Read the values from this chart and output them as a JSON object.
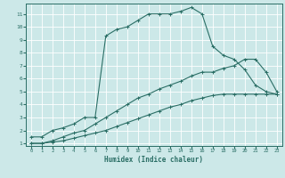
{
  "title": "",
  "xlabel": "Humidex (Indice chaleur)",
  "bg_color": "#cce8e8",
  "grid_color": "#ffffff",
  "line_color": "#2a6e65",
  "xlim": [
    -0.5,
    23.5
  ],
  "ylim": [
    0.8,
    11.8
  ],
  "xticks": [
    0,
    1,
    2,
    3,
    4,
    5,
    6,
    7,
    8,
    9,
    10,
    11,
    12,
    13,
    14,
    15,
    16,
    17,
    18,
    19,
    20,
    21,
    22,
    23
  ],
  "yticks": [
    1,
    2,
    3,
    4,
    5,
    6,
    7,
    8,
    9,
    10,
    11
  ],
  "line1_x": [
    0,
    1,
    2,
    3,
    4,
    5,
    6,
    7,
    8,
    9,
    10,
    11,
    12,
    13,
    14,
    15,
    16,
    17,
    18,
    19,
    20,
    21,
    22,
    23
  ],
  "line1_y": [
    1.5,
    1.5,
    2.0,
    2.2,
    2.5,
    3.0,
    3.0,
    9.3,
    9.8,
    10.0,
    10.5,
    11.0,
    11.0,
    11.0,
    11.2,
    11.5,
    11.0,
    8.5,
    7.8,
    7.5,
    6.7,
    5.5,
    5.0,
    4.8
  ],
  "line2_x": [
    0,
    1,
    2,
    3,
    4,
    5,
    6,
    7,
    8,
    9,
    10,
    11,
    12,
    13,
    14,
    15,
    16,
    17,
    18,
    19,
    20,
    21,
    22,
    23
  ],
  "line2_y": [
    1.0,
    1.0,
    1.2,
    1.5,
    1.8,
    2.0,
    2.5,
    3.0,
    3.5,
    4.0,
    4.5,
    4.8,
    5.2,
    5.5,
    5.8,
    6.2,
    6.5,
    6.5,
    6.8,
    7.0,
    7.5,
    7.5,
    6.5,
    5.0
  ],
  "line3_x": [
    0,
    1,
    2,
    3,
    4,
    5,
    6,
    7,
    8,
    9,
    10,
    11,
    12,
    13,
    14,
    15,
    16,
    17,
    18,
    19,
    20,
    21,
    22,
    23
  ],
  "line3_y": [
    1.0,
    1.0,
    1.1,
    1.2,
    1.4,
    1.6,
    1.8,
    2.0,
    2.3,
    2.6,
    2.9,
    3.2,
    3.5,
    3.8,
    4.0,
    4.3,
    4.5,
    4.7,
    4.8,
    4.8,
    4.8,
    4.8,
    4.8,
    4.8
  ]
}
